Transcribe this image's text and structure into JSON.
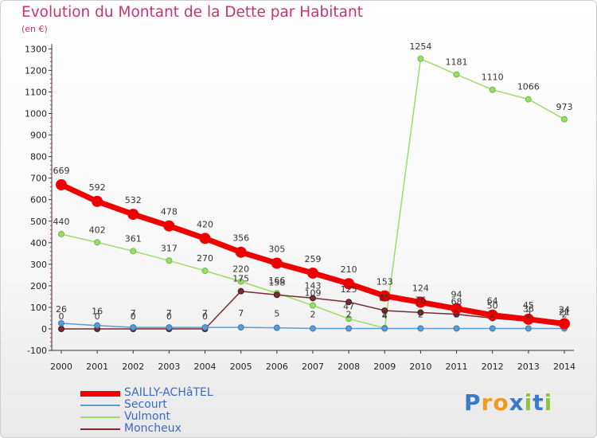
{
  "header": {
    "title": "Evolution du Montant de la Dette par Habitant",
    "subtitle": "(en €)"
  },
  "chart_data": {
    "type": "line",
    "title": "Evolution du Montant de la Dette par Habitant",
    "subtitle": "(en €)",
    "xlabel": "",
    "ylabel": "",
    "ylim": [
      -100,
      1300
    ],
    "yticks": [
      -100,
      0,
      100,
      200,
      300,
      400,
      500,
      600,
      700,
      800,
      900,
      1000,
      1100,
      1200,
      1300
    ],
    "x": [
      2000,
      2001,
      2002,
      2003,
      2004,
      2005,
      2006,
      2007,
      2008,
      2009,
      2010,
      2011,
      2012,
      2013,
      2014
    ],
    "grid": false,
    "legend_position": "bottom-left",
    "series": [
      {
        "name": "SAILLY-ACHâTEL",
        "color": "#ee0000",
        "values": [
          669,
          592,
          532,
          478,
          420,
          356,
          305,
          259,
          210,
          153,
          124,
          94,
          64,
          45,
          24
        ]
      },
      {
        "name": "Secourt",
        "color": "#5a9bd4",
        "values": [
          26,
          16,
          7,
          7,
          7,
          7,
          5,
          2,
          2,
          2,
          2,
          2,
          2,
          2,
          2
        ]
      },
      {
        "name": "Vulmont",
        "color": "#99dd66",
        "values": [
          440,
          402,
          361,
          317,
          270,
          220,
          166,
          109,
          47,
          4,
          1254,
          1181,
          1110,
          1066,
          973
        ]
      },
      {
        "name": "Moncheux",
        "color": "#7a2a30",
        "values": [
          0,
          0,
          0,
          0,
          0,
          175,
          158,
          143,
          125,
          85,
          76,
          68,
          50,
          36,
          21
        ]
      }
    ]
  },
  "logo": {
    "text": "Proxiti",
    "letters": [
      "P",
      "r",
      "o",
      "x",
      "i",
      "t",
      "i"
    ],
    "colors": [
      "#3a78c9",
      "#f29a1e",
      "#f29a1e",
      "#3a78c9",
      "#8cc63f",
      "#3a78c9",
      "#8cc63f"
    ]
  }
}
